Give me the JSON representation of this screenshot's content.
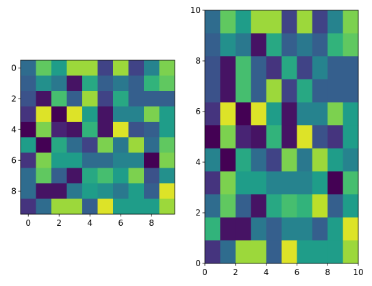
{
  "chart_data": [
    {
      "type": "heatmap",
      "colormap": "viridis",
      "origin": "upper",
      "xlim": [
        -0.5,
        9.5
      ],
      "ylim": [
        9.5,
        -0.5
      ],
      "x_ticks": [
        0,
        2,
        4,
        6,
        8
      ],
      "y_ticks": [
        0,
        2,
        4,
        6,
        8
      ],
      "x_tick_labels": [
        "0",
        "2",
        "4",
        "6",
        "8"
      ],
      "y_tick_labels": [
        "0",
        "2",
        "4",
        "6",
        "8"
      ],
      "values": [
        [
          0.35,
          0.75,
          0.55,
          0.85,
          0.85,
          0.2,
          0.85,
          0.2,
          0.45,
          0.8
        ],
        [
          0.3,
          0.5,
          0.4,
          0.05,
          0.6,
          0.3,
          0.4,
          0.3,
          0.65,
          0.75
        ],
        [
          0.25,
          0.05,
          0.7,
          0.3,
          0.85,
          0.2,
          0.6,
          0.3,
          0.3,
          0.3
        ],
        [
          0.15,
          0.95,
          0.0,
          0.95,
          0.55,
          0.05,
          0.45,
          0.45,
          0.8,
          0.55
        ],
        [
          0.0,
          0.8,
          0.1,
          0.05,
          0.65,
          0.05,
          0.95,
          0.25,
          0.3,
          0.55
        ],
        [
          0.55,
          0.0,
          0.6,
          0.35,
          0.2,
          0.8,
          0.4,
          0.85,
          0.35,
          0.75
        ],
        [
          0.15,
          0.8,
          0.55,
          0.55,
          0.35,
          0.35,
          0.45,
          0.45,
          0.0,
          0.8
        ],
        [
          0.35,
          0.75,
          0.3,
          0.05,
          0.6,
          0.7,
          0.55,
          0.8,
          0.25,
          0.5
        ],
        [
          0.35,
          0.05,
          0.05,
          0.4,
          0.55,
          0.5,
          0.4,
          0.55,
          0.3,
          0.95
        ],
        [
          0.15,
          0.35,
          0.85,
          0.85,
          0.3,
          0.95,
          0.55,
          0.55,
          0.55,
          0.85
        ]
      ]
    },
    {
      "type": "heatmap",
      "colormap": "viridis",
      "origin": "lower",
      "xlim": [
        0,
        10
      ],
      "ylim": [
        0,
        10
      ],
      "x_ticks": [
        0,
        2,
        4,
        6,
        8,
        10
      ],
      "y_ticks": [
        0,
        2,
        4,
        6,
        8,
        10
      ],
      "x_tick_labels": [
        "0",
        "2",
        "4",
        "6",
        "8",
        "10"
      ],
      "y_tick_labels": [
        "0",
        "2",
        "4",
        "6",
        "8",
        "10"
      ],
      "values": [
        [
          0.35,
          0.75,
          0.55,
          0.85,
          0.85,
          0.2,
          0.85,
          0.2,
          0.45,
          0.8
        ],
        [
          0.3,
          0.5,
          0.4,
          0.05,
          0.6,
          0.3,
          0.4,
          0.3,
          0.65,
          0.75
        ],
        [
          0.25,
          0.05,
          0.7,
          0.3,
          0.15,
          0.6,
          0.2,
          0.45,
          0.3,
          0.3
        ],
        [
          0.25,
          0.05,
          0.7,
          0.3,
          0.85,
          0.2,
          0.6,
          0.3,
          0.3,
          0.3
        ],
        [
          0.15,
          0.95,
          0.0,
          0.95,
          0.55,
          0.05,
          0.45,
          0.45,
          0.8,
          0.55
        ],
        [
          0.0,
          0.8,
          0.1,
          0.05,
          0.65,
          0.05,
          0.95,
          0.25,
          0.15,
          0.55
        ],
        [
          0.45,
          0.0,
          0.6,
          0.35,
          0.2,
          0.8,
          0.4,
          0.85,
          0.55,
          0.45
        ],
        [
          0.15,
          0.8,
          0.55,
          0.55,
          0.45,
          0.45,
          0.45,
          0.55,
          0.0,
          0.7
        ],
        [
          0.35,
          0.75,
          0.3,
          0.05,
          0.6,
          0.7,
          0.65,
          0.9,
          0.3,
          0.55
        ],
        [
          0.65,
          0.05,
          0.05,
          0.4,
          0.3,
          0.45,
          0.45,
          0.3,
          0.55,
          0.95
        ],
        [
          0.15,
          0.35,
          0.85,
          0.85,
          0.3,
          0.95,
          0.55,
          0.55,
          0.55,
          0.85
        ]
      ]
    }
  ]
}
